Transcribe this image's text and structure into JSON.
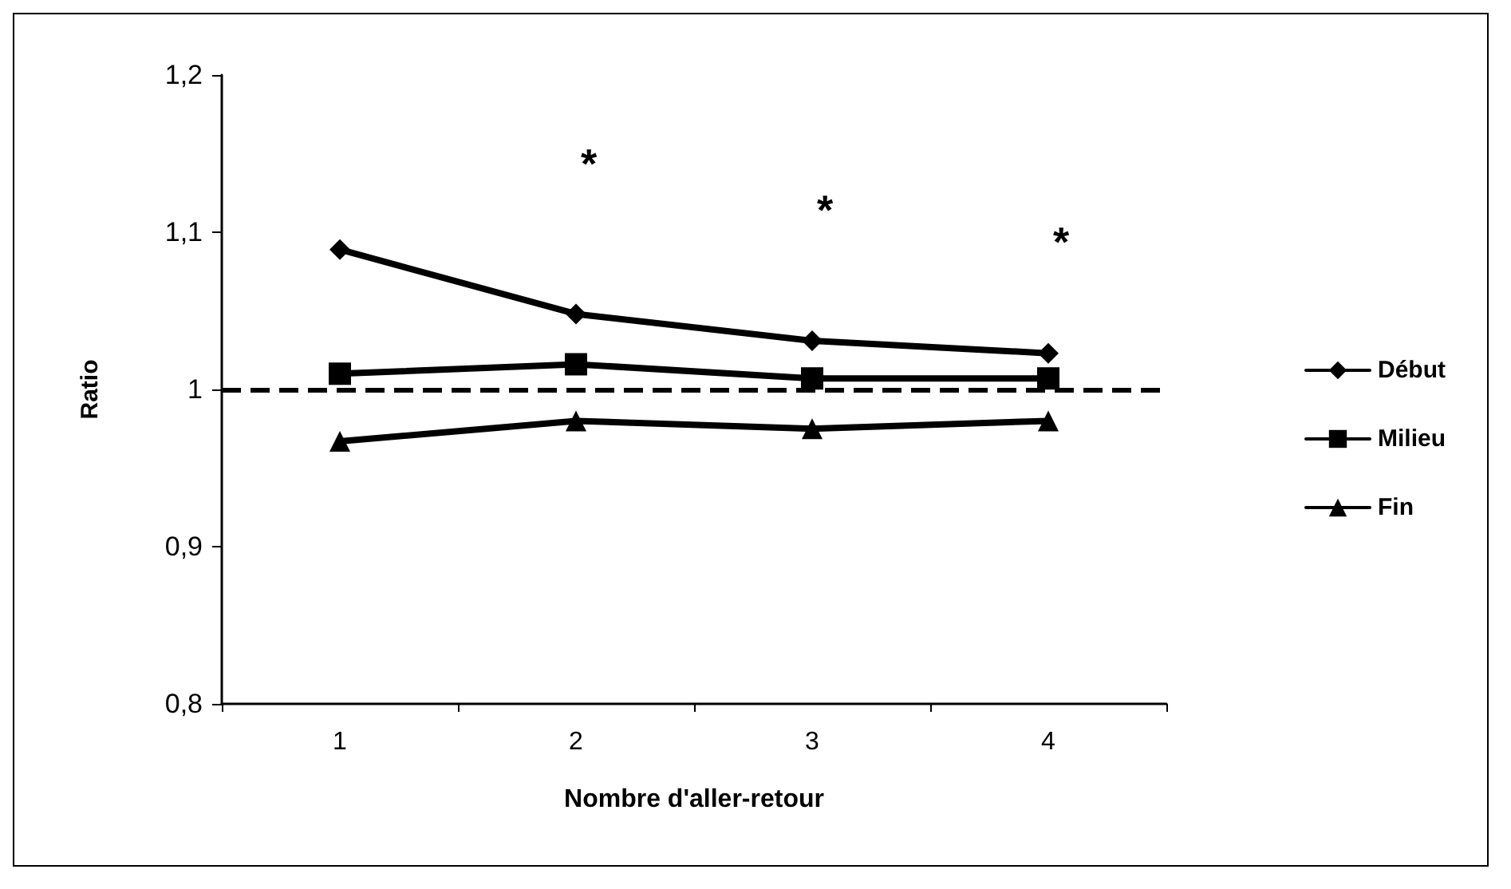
{
  "chart_data": {
    "type": "line",
    "xlabel": "Nombre d'aller-retour",
    "ylabel": "Ratio",
    "categories": [
      "1",
      "2",
      "3",
      "4"
    ],
    "series": [
      {
        "name": "Début",
        "color": "#000000",
        "marker": "diamond",
        "values": [
          1.089,
          1.048,
          1.031,
          1.023
        ]
      },
      {
        "name": "Milieu",
        "color": "#000000",
        "marker": "square",
        "values": [
          1.01,
          1.016,
          1.007,
          1.007
        ]
      },
      {
        "name": "Fin",
        "color": "#000000",
        "marker": "triangle",
        "values": [
          0.967,
          0.98,
          0.975,
          0.98
        ]
      }
    ],
    "ylim": [
      0.8,
      1.2
    ],
    "yticks": [
      {
        "value": 0.8,
        "label": "0,8"
      },
      {
        "value": 0.9,
        "label": "0,9"
      },
      {
        "value": 1,
        "label": "1"
      },
      {
        "value": 1.1,
        "label": "1,1"
      },
      {
        "value": 1.2,
        "label": "1,2"
      }
    ],
    "ref_lines": [
      {
        "axis": "y",
        "value": 1,
        "color": "#000000",
        "line_style": "dashed"
      }
    ],
    "annotations": [
      "*",
      "*",
      "*"
    ],
    "grid": false,
    "legend": "right",
    "line_style": "solid"
  }
}
